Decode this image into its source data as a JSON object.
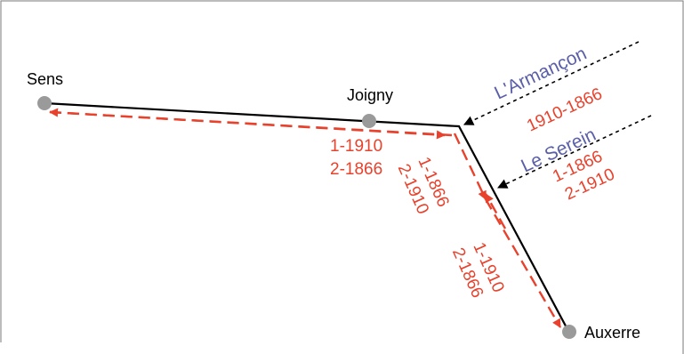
{
  "colors": {
    "flow": "#e8412c",
    "river": "#000000",
    "city": "#9a9a9a",
    "river_name": "#5a5fa8",
    "frame": "#7a7a7a"
  },
  "cities": {
    "sens": "Sens",
    "joigny": "Joigny",
    "auxerre": "Auxerre"
  },
  "rivers": {
    "armancon": {
      "name": "L'Armançon",
      "years": "1910-1866"
    },
    "serein": {
      "name": "Le Serein",
      "line1": "1-1866",
      "line2": "2-1910"
    }
  },
  "labels": {
    "yonne_lower": {
      "line1": "1-1910",
      "line2": "2-1866"
    },
    "yonne_upper": {
      "line1": "1-1866",
      "line2": "2-1910"
    },
    "yonne_auxerre": {
      "line1": "1-1910",
      "line2": "2-1866"
    }
  }
}
